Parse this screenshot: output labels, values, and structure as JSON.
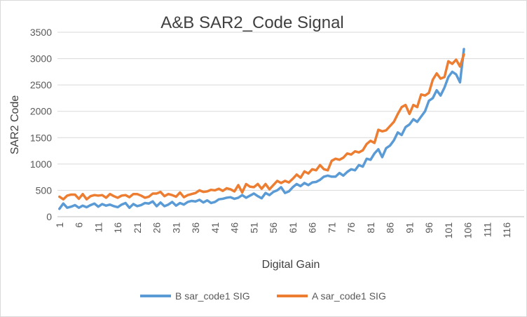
{
  "chart_data": {
    "type": "line",
    "title": "A&B SAR2_Code Signal",
    "x_label": "Digital Gain",
    "y_label": "SAR2 Code",
    "categories": [
      1,
      null,
      null,
      null,
      null,
      6,
      null,
      null,
      null,
      null,
      11,
      null,
      null,
      null,
      null,
      16,
      null,
      null,
      null,
      null,
      21,
      null,
      null,
      null,
      null,
      26,
      null,
      null,
      null,
      null,
      31,
      null,
      null,
      null,
      null,
      36,
      null,
      null,
      null,
      null,
      41,
      null,
      null,
      null,
      null,
      46,
      null,
      null,
      null,
      null,
      51,
      null,
      null,
      null,
      null,
      56,
      null,
      null,
      null,
      null,
      61,
      null,
      null,
      null,
      null,
      66,
      null,
      null,
      null,
      null,
      71,
      null,
      null,
      null,
      null,
      76,
      null,
      null,
      null,
      null,
      81,
      null,
      null,
      null,
      null,
      86,
      null,
      null,
      null,
      null,
      91,
      null,
      null,
      null,
      null,
      96,
      null,
      null,
      null,
      null,
      101,
      null,
      null,
      null,
      null,
      106,
      null,
      null,
      null,
      null,
      111,
      null,
      null,
      null,
      null,
      116,
      null,
      null,
      null,
      null
    ],
    "series": [
      {
        "name": "B sar_code1 SIG",
        "color": "#5b9bd5",
        "values": [
          150,
          250,
          170,
          190,
          220,
          170,
          210,
          180,
          220,
          250,
          190,
          240,
          210,
          230,
          200,
          180,
          230,
          260,
          170,
          240,
          200,
          220,
          260,
          250,
          290,
          200,
          270,
          200,
          230,
          280,
          210,
          260,
          230,
          280,
          300,
          290,
          320,
          270,
          310,
          260,
          280,
          330,
          340,
          360,
          370,
          340,
          360,
          410,
          360,
          400,
          440,
          390,
          350,
          450,
          410,
          470,
          500,
          560,
          450,
          480,
          560,
          620,
          580,
          640,
          600,
          650,
          660,
          700,
          760,
          780,
          760,
          760,
          830,
          780,
          850,
          900,
          880,
          980,
          950,
          1100,
          1080,
          1200,
          1280,
          1130,
          1300,
          1350,
          1450,
          1600,
          1550,
          1700,
          1750,
          1850,
          1800,
          1900,
          2000,
          2200,
          2250,
          2400,
          2300,
          2450,
          2650,
          2750,
          2700,
          2550,
          3180,
          null,
          null,
          null,
          null,
          null,
          null,
          null,
          null,
          null,
          null,
          null,
          null,
          null,
          null,
          null
        ]
      },
      {
        "name": "A sar_code1 SIG",
        "color": "#ed7d31",
        "values": [
          380,
          330,
          400,
          420,
          420,
          340,
          430,
          330,
          390,
          410,
          400,
          410,
          360,
          430,
          390,
          360,
          400,
          410,
          370,
          430,
          430,
          400,
          360,
          380,
          440,
          440,
          470,
          390,
          430,
          410,
          380,
          460,
          370,
          410,
          430,
          450,
          500,
          470,
          480,
          510,
          500,
          530,
          490,
          540,
          520,
          480,
          600,
          460,
          620,
          570,
          560,
          620,
          530,
          620,
          520,
          600,
          680,
          640,
          680,
          650,
          720,
          800,
          740,
          860,
          820,
          900,
          880,
          980,
          900,
          880,
          1060,
          1100,
          1080,
          1120,
          1200,
          1180,
          1240,
          1220,
          1260,
          1380,
          1440,
          1400,
          1650,
          1620,
          1640,
          1720,
          1800,
          1950,
          2080,
          2120,
          1950,
          2120,
          2080,
          2320,
          2300,
          2350,
          2600,
          2720,
          2620,
          2650,
          2950,
          2900,
          2980,
          2850,
          3080,
          null,
          null,
          null,
          null,
          null,
          null,
          null,
          null,
          null,
          null,
          null,
          null,
          null,
          null,
          null
        ]
      }
    ],
    "ylim": [
      0,
      3500
    ],
    "yticks": [
      0,
      500,
      1000,
      1500,
      2000,
      2500,
      3000,
      3500
    ],
    "grid": true,
    "legend": "bottom"
  }
}
